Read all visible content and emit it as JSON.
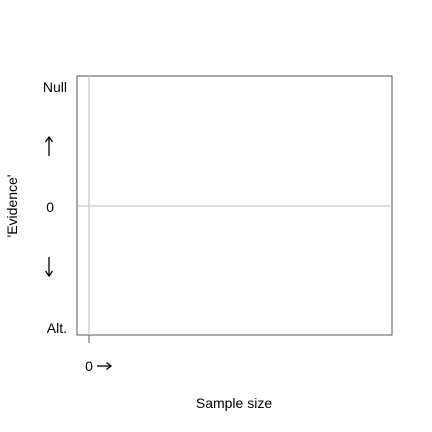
{
  "chart_data": {
    "type": "line",
    "title": "",
    "xlabel": "Sample size",
    "ylabel": "'Evidence'",
    "y_tick_labels": {
      "top": "Null",
      "middle": "0",
      "bottom": "Alt."
    },
    "x_tick_label": "0",
    "y_arrows": {
      "up": "up-arrow-icon",
      "down": "down-arrow-icon"
    },
    "x_arrow": "right-arrow-icon",
    "reference_lines": {
      "horizontal_at": "0",
      "vertical_at": "0"
    },
    "series": [],
    "grid": false,
    "legend": "none",
    "colors": {
      "axis": "#555555",
      "reference_line": "#bebebe",
      "text": "#000000"
    }
  }
}
